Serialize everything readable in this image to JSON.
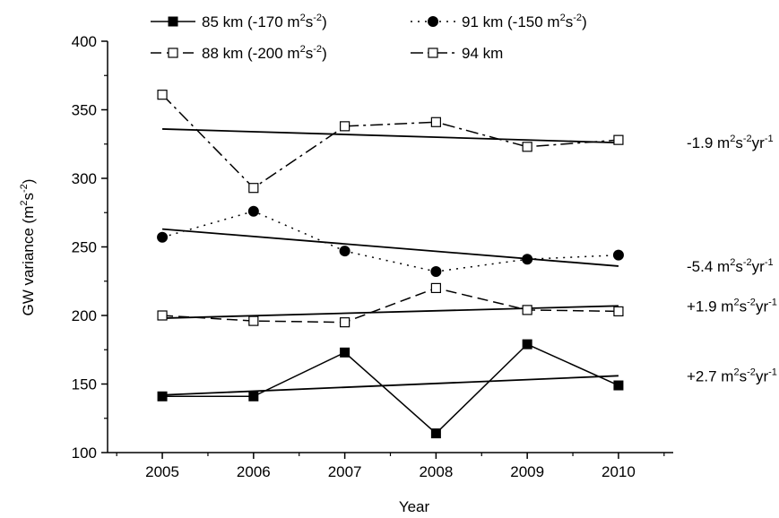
{
  "chart_data": {
    "type": "line",
    "xlabel": "Year",
    "ylabel": "GW variance (m²s⁻²)",
    "ylabel_parts": {
      "main": "GW variance (m",
      "sup1": "2",
      "mid": "s",
      "sup2": "-2",
      "end": ")"
    },
    "x": [
      2005,
      2006,
      2007,
      2008,
      2009,
      2010
    ],
    "x_ticks": [
      "2005",
      "2006",
      "2007",
      "2008",
      "2009",
      "2010"
    ],
    "y_ticks": [
      "100",
      "150",
      "200",
      "250",
      "300",
      "350",
      "400"
    ],
    "ylim": [
      100,
      400
    ],
    "xlim": [
      2004.4,
      2010.6
    ],
    "grid": false,
    "legend_position": "top",
    "series": [
      {
        "name": "85 km (-170 m²s⁻²)",
        "legend_parts": {
          "main": "85 km (-170 m",
          "sup1": "2",
          "mid": "s",
          "sup2": "-2",
          "end": ")"
        },
        "values": [
          141,
          141,
          173,
          114,
          179,
          149
        ],
        "line_style": "solid",
        "marker": "filled-square",
        "trend": {
          "start": 142,
          "end": 156
        },
        "trend_label": {
          "main": "+2.7 m",
          "sup1": "2",
          "mid": "s",
          "sup2": "-2",
          "mid2": "yr",
          "sup3": "-1"
        }
      },
      {
        "name": "91 km (-150 m²s⁻²)",
        "legend_parts": {
          "main": "91 km (-150 m",
          "sup1": "2",
          "mid": "s",
          "sup2": "-2",
          "end": ")"
        },
        "values": [
          257,
          276,
          247,
          232,
          241,
          244
        ],
        "line_style": "dotted",
        "marker": "filled-circle",
        "trend": {
          "start": 263,
          "end": 236
        },
        "trend_label": {
          "main": "-5.4 m",
          "sup1": "2",
          "mid": "s",
          "sup2": "-2",
          "mid2": "yr",
          "sup3": "-1"
        }
      },
      {
        "name": "88 km (-200 m²s⁻²)",
        "legend_parts": {
          "main": "88 km (-200 m",
          "sup1": "2",
          "mid": "s",
          "sup2": "-2",
          "end": ")"
        },
        "values": [
          200,
          196,
          195,
          220,
          204,
          203
        ],
        "line_style": "dashed",
        "marker": "open-square",
        "trend": {
          "start": 198,
          "end": 207
        },
        "trend_label": {
          "main": "+1.9 m",
          "sup1": "2",
          "mid": "s",
          "sup2": "-2",
          "mid2": "yr",
          "sup3": "-1"
        }
      },
      {
        "name": "94 km",
        "legend_parts": {
          "main": "94 km",
          "sup1": "",
          "mid": "",
          "sup2": "",
          "end": ""
        },
        "values": [
          361,
          293,
          338,
          341,
          323,
          328
        ],
        "line_style": "dashdot",
        "marker": "open-square",
        "trend": {
          "start": 336,
          "end": 326
        },
        "trend_label": {
          "main": "-1.9 m",
          "sup1": "2",
          "mid": "s",
          "sup2": "-2",
          "mid2": "yr",
          "sup3": "-1"
        }
      }
    ]
  }
}
